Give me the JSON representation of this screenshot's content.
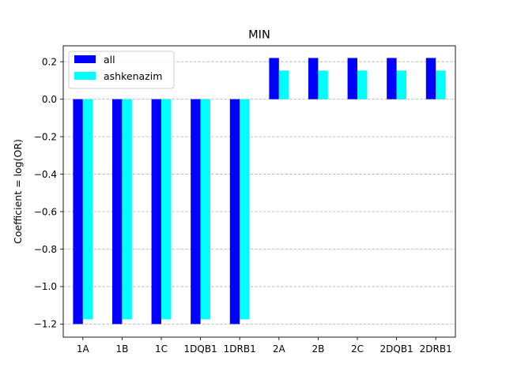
{
  "chart_data": {
    "type": "bar",
    "title": "MIN",
    "xlabel": "",
    "ylabel": "Coefficient = log(OR)",
    "categories": [
      "1A",
      "1B",
      "1C",
      "1DQB1",
      "1DRB1",
      "2A",
      "2B",
      "2C",
      "2DQB1",
      "2DRB1"
    ],
    "series": [
      {
        "name": "all",
        "color": "#0000ff",
        "values": [
          -1.2,
          -1.2,
          -1.2,
          -1.2,
          -1.2,
          0.22,
          0.22,
          0.22,
          0.22,
          0.22
        ]
      },
      {
        "name": "ashkenazim",
        "color": "#00ffff",
        "values": [
          -1.175,
          -1.175,
          -1.175,
          -1.175,
          -1.175,
          0.153,
          0.153,
          0.153,
          0.153,
          0.153
        ]
      }
    ],
    "ylim": [
      -1.27,
      0.285
    ],
    "yticks": [
      0.2,
      0.0,
      -0.2,
      -0.4,
      -0.6,
      -0.8,
      -1.0,
      -1.2
    ],
    "ytick_labels": [
      "0.2",
      "0.0",
      "−0.2",
      "−0.4",
      "−0.6",
      "−0.8",
      "−1.0",
      "−1.2"
    ],
    "grid": "horizontal dashed",
    "legend_position": "top-left"
  }
}
